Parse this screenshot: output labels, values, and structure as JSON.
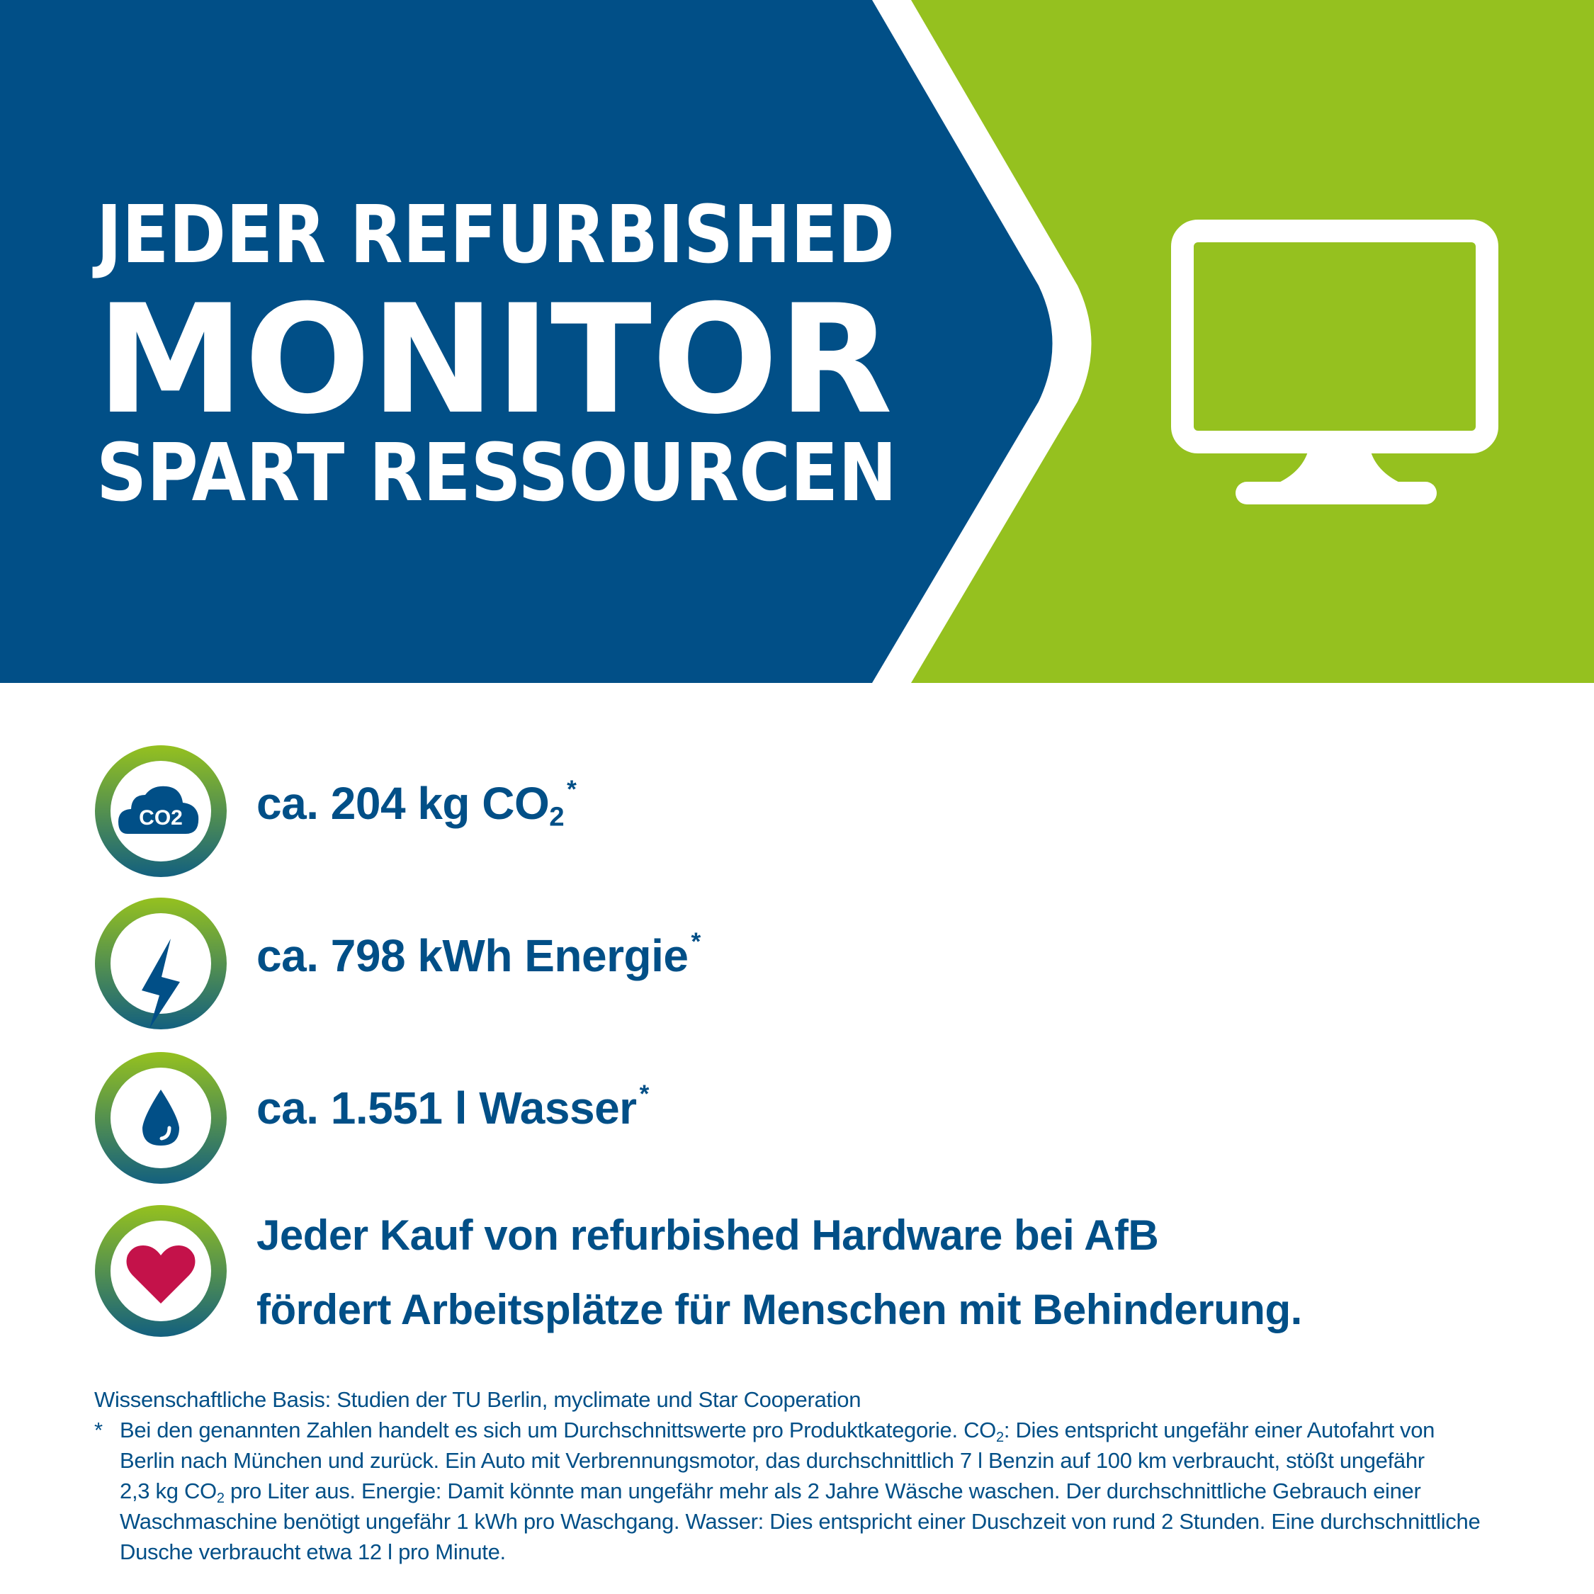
{
  "colors": {
    "brand_blue": "#014f87",
    "brand_green": "#95c11f",
    "ring_bottom": "#13607f",
    "heart": "#c4124a",
    "white": "#ffffff"
  },
  "header": {
    "line1": "JEDER REFURBISHED",
    "line2": "MONITOR",
    "line3": "SPART RESSOURCEN",
    "icon": "monitor-icon"
  },
  "stats": [
    {
      "icon": "co2-cloud-icon",
      "icon_text": "CO2",
      "text": "ca. 204 kg CO",
      "sub": "2",
      "mark": "*"
    },
    {
      "icon": "lightning-bolt-icon",
      "text": "ca. 798 kWh Energie",
      "mark": "*"
    },
    {
      "icon": "water-drop-icon",
      "text": "ca. 1.551 l Wasser",
      "mark": "*"
    },
    {
      "icon": "heart-icon",
      "line1": "Jeder Kauf von refurbished Hardware bei AfB",
      "line2": "fördert Arbeitsplätze für Menschen mit Behinderung."
    }
  ],
  "footnote": {
    "basis": "Wissenschaftliche Basis: Studien der TU Berlin, myclimate und Star Cooperation",
    "mark": "*",
    "l1a": "Bei den genannten Zahlen handelt es sich um Durchschnittswerte pro Produktkategorie. CO",
    "l1sub": "2",
    "l1b": ": Dies entspricht ungefähr einer Autofahrt von",
    "l2": "Berlin nach München und zurück. Ein Auto mit Verbrennungsmotor, das durchschnittlich 7 l Benzin auf 100 km verbraucht, stößt ungefähr",
    "l3a": "2,3 kg CO",
    "l3sub": "2",
    "l3b": " pro Liter aus. Energie: Damit könnte man ungefähr mehr als 2 Jahre Wäsche waschen. Der durchschnittliche Gebrauch einer",
    "l4": "Waschmaschine benötigt ungefähr 1 kWh pro Waschgang. Wasser: Dies entspricht einer Duschzeit von rund 2 Stunden. Eine durchschnittliche",
    "l5": "Dusche verbraucht etwa 12 l pro Minute."
  }
}
